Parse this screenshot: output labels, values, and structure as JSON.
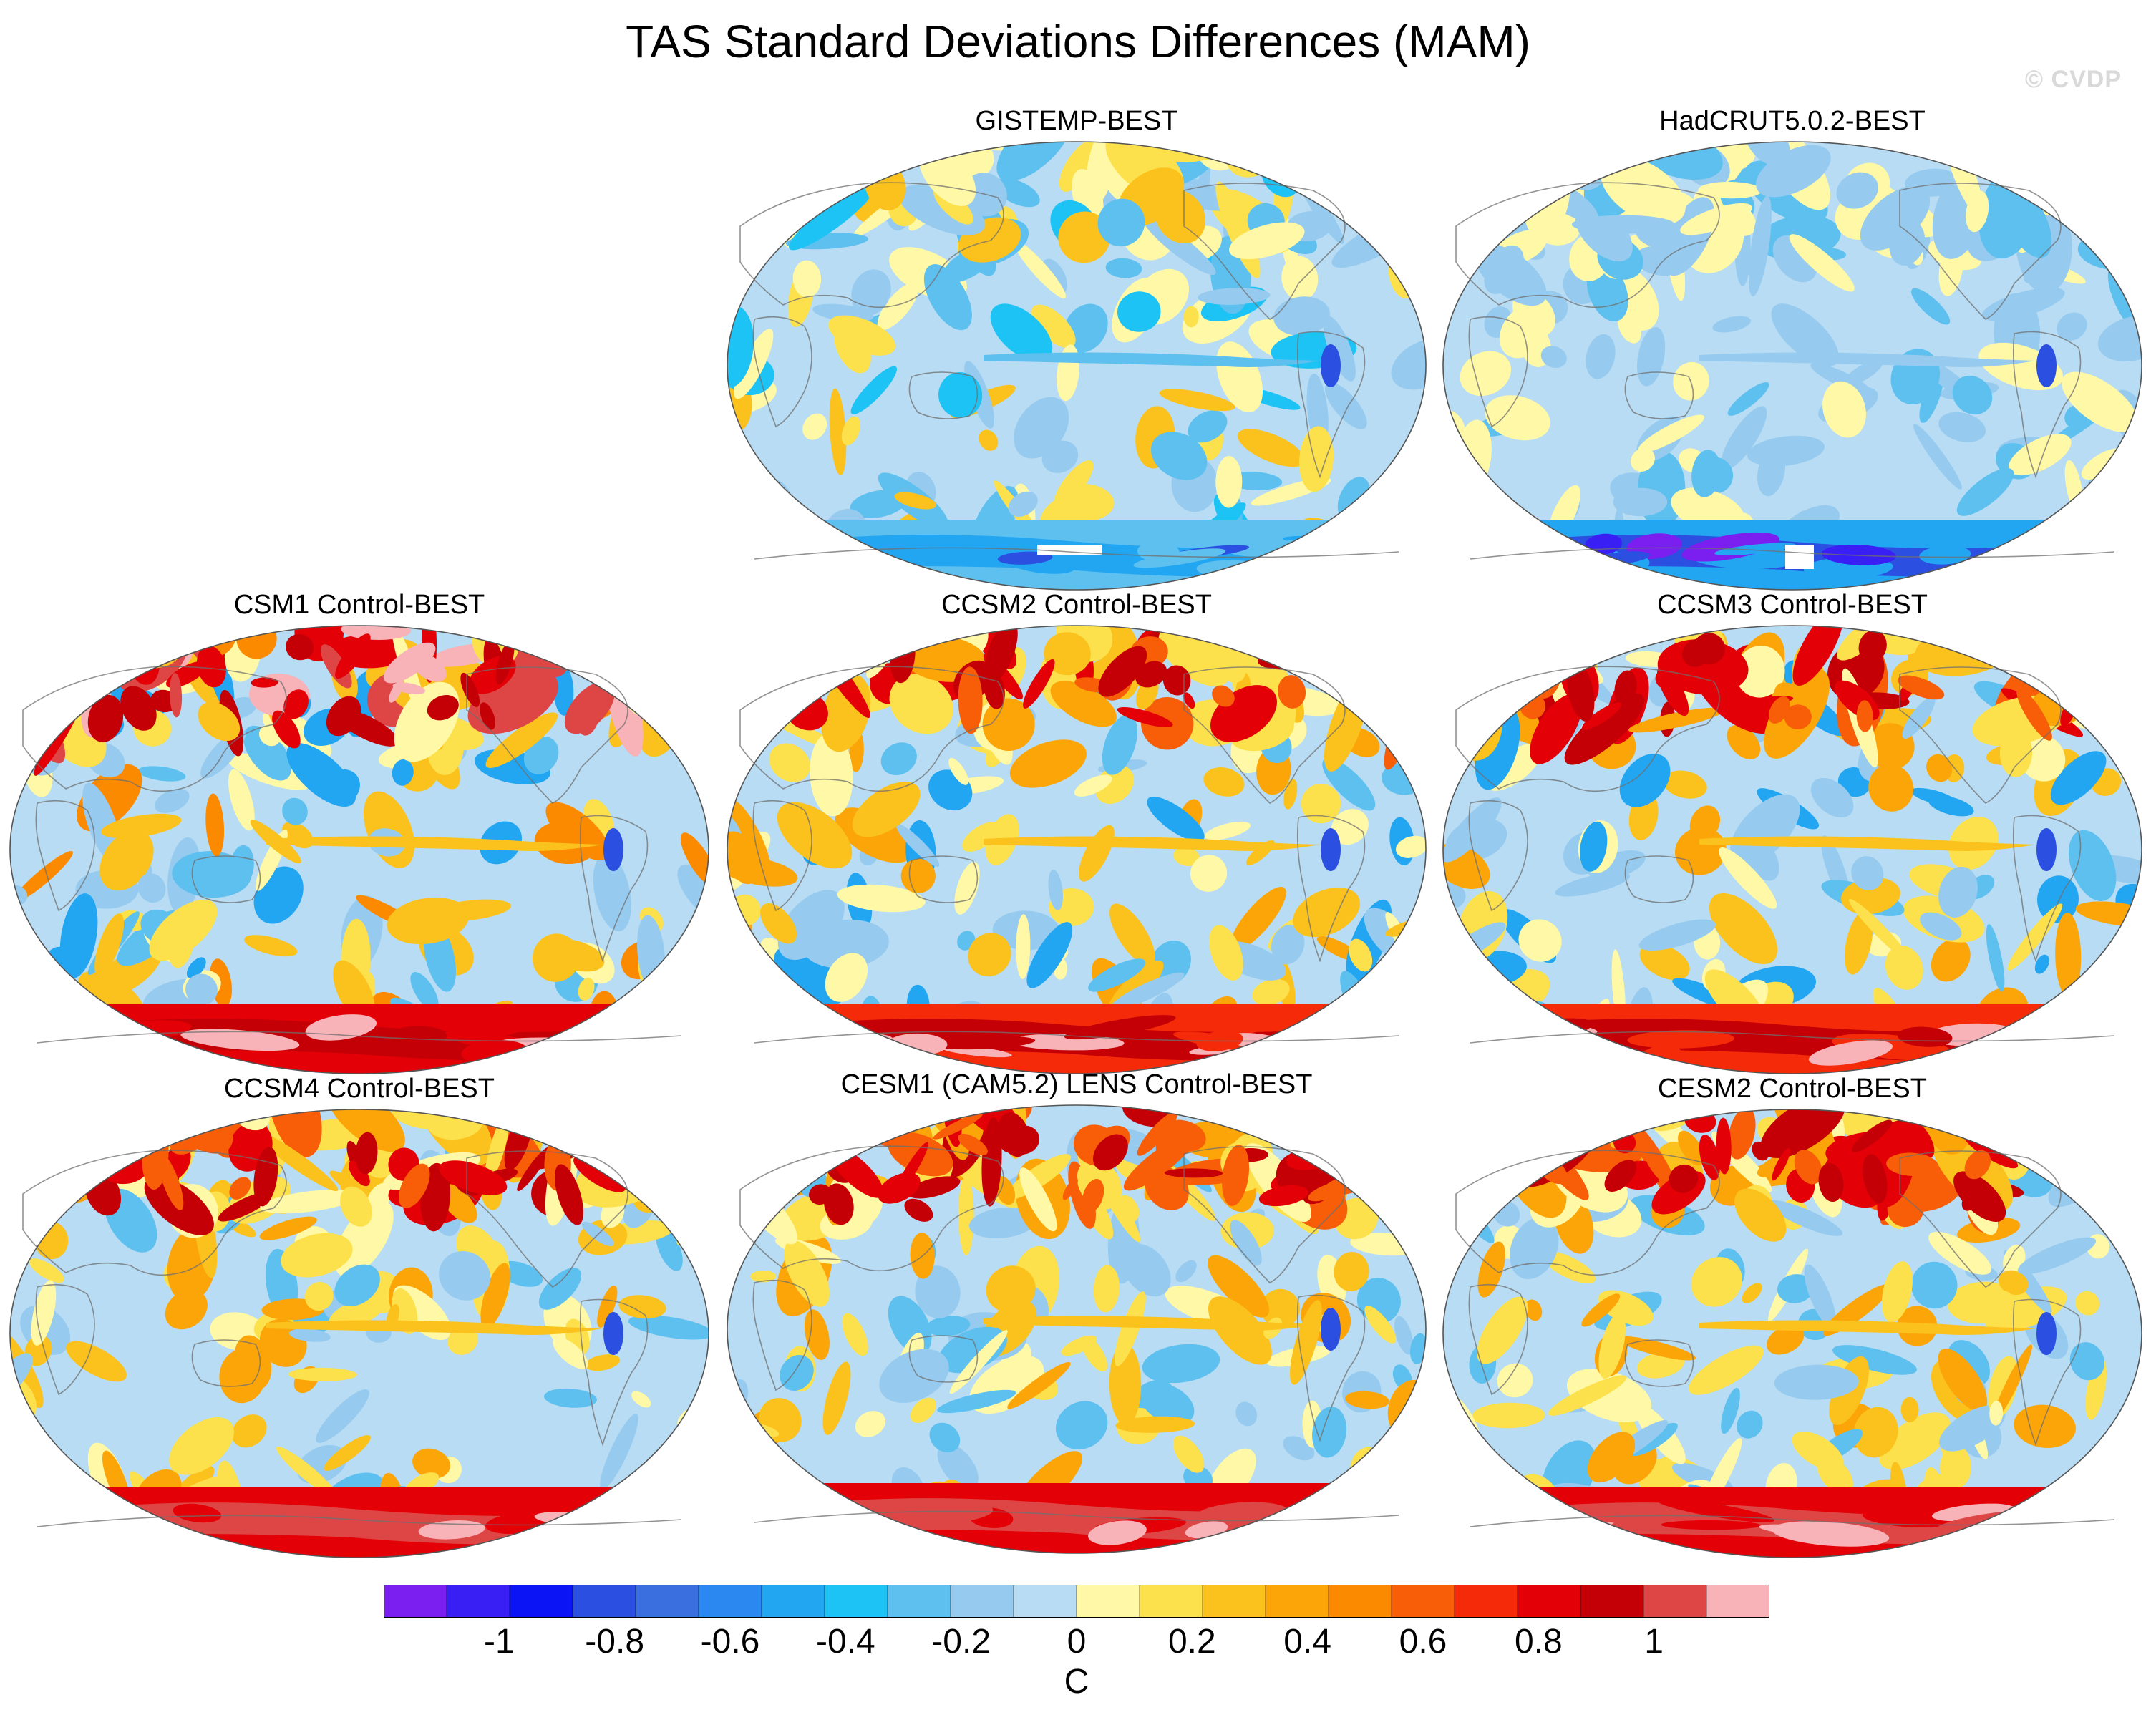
{
  "title": "TAS Standard Deviations Differences (MAM)",
  "watermark": "© CVDP",
  "panels": [
    {
      "title": "GISTEMP-BEST",
      "style": "obs1"
    },
    {
      "title": "HadCRUT5.0.2-BEST",
      "style": "obs2"
    },
    {
      "title": "CSM1 Control-BEST",
      "style": "model-strong"
    },
    {
      "title": "CCSM2 Control-BEST",
      "style": "model"
    },
    {
      "title": "CCSM3 Control-BEST",
      "style": "model"
    },
    {
      "title": "CCSM4 Control-BEST",
      "style": "model-warm"
    },
    {
      "title": "CESM1 (CAM5.2) LENS Control-BEST",
      "style": "model-warm"
    },
    {
      "title": "CESM2 Control-BEST",
      "style": "model-warm"
    }
  ],
  "colorbar": {
    "unit": "C",
    "tick_labels": [
      "-1",
      "-0.8",
      "-0.6",
      "-0.4",
      "-0.2",
      "0",
      "0.2",
      "0.4",
      "0.6",
      "0.8",
      "1"
    ],
    "tick_values": [
      -1,
      -0.8,
      -0.6,
      -0.4,
      -0.2,
      0,
      0.2,
      0.4,
      0.6,
      0.8,
      1
    ],
    "bins": 22,
    "range": [
      -1.2,
      1.2
    ],
    "colors": [
      "#7a1ff0",
      "#3a1ff5",
      "#0a14f5",
      "#2b4fe0",
      "#3a6fe0",
      "#2a88f0",
      "#22a6f2",
      "#1ec3f5",
      "#5ec0ef",
      "#96cbef",
      "#b7dcf3",
      "#fff8a6",
      "#fde14c",
      "#fbc21e",
      "#fba508",
      "#fb8a00",
      "#f85d08",
      "#f52a08",
      "#e30006",
      "#c40006",
      "#de4646",
      "#f7b3b8"
    ]
  }
}
